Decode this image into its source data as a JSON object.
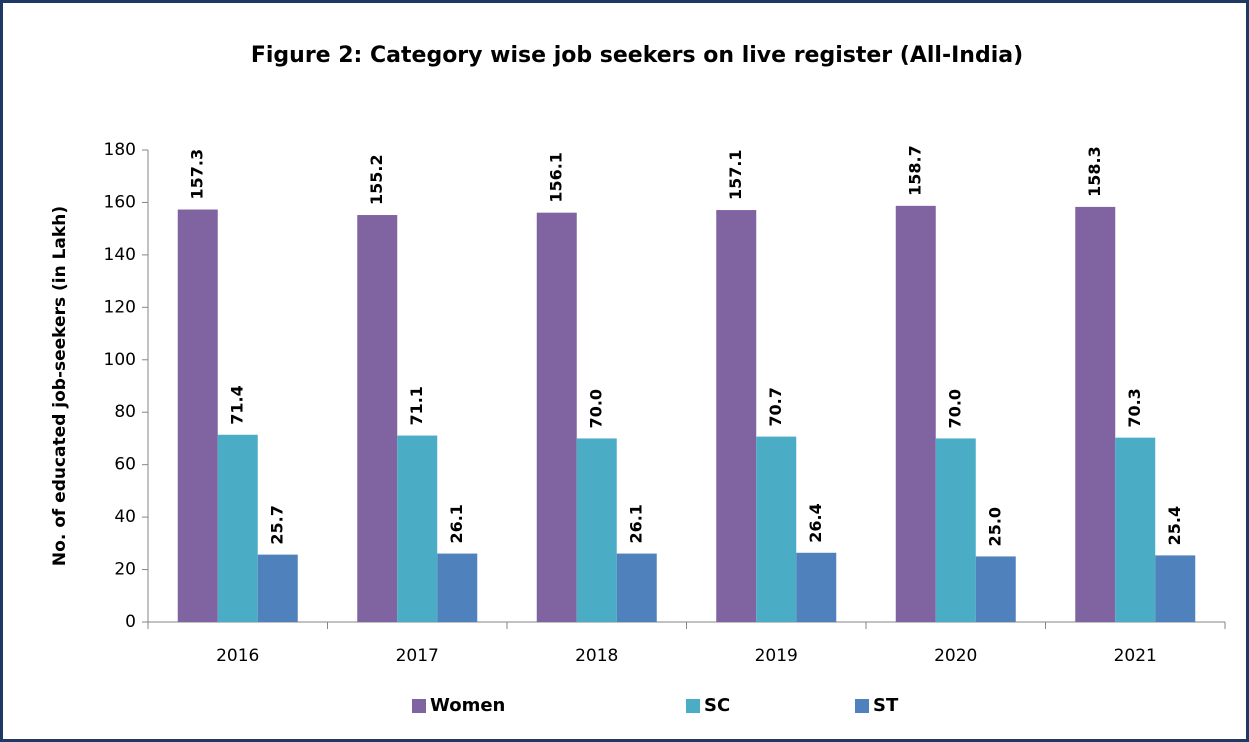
{
  "chart_data": {
    "type": "bar",
    "title": "Figure 2: Category wise job seekers on live register (All-India)",
    "y_label": "No. of educated job-seekers (in Lakh)",
    "categories": [
      "2016",
      "2017",
      "2018",
      "2019",
      "2020",
      "2021"
    ],
    "series": [
      {
        "name": "Women",
        "color": "#8064a2",
        "values": [
          157.3,
          155.2,
          156.1,
          157.1,
          158.7,
          158.3
        ]
      },
      {
        "name": "SC",
        "color": "#4bacc6",
        "values": [
          71.4,
          71.1,
          70.0,
          70.7,
          70.0,
          70.3
        ],
        "value_labels": [
          "71.4",
          "71.1",
          "70.0",
          "70.7",
          "70.0",
          "70.3"
        ]
      },
      {
        "name": "ST",
        "color": "#4f81bd",
        "values": [
          25.7,
          26.1,
          26.1,
          26.4,
          25.0,
          25.4
        ],
        "value_labels": [
          "25.7",
          "26.1",
          "26.1",
          "26.4",
          "25.0",
          "25.4"
        ]
      }
    ],
    "ylim": [
      0,
      180
    ],
    "yticks": [
      0,
      20,
      40,
      60,
      80,
      100,
      120,
      140,
      160,
      180
    ],
    "grid": false,
    "legend": "bottom"
  }
}
